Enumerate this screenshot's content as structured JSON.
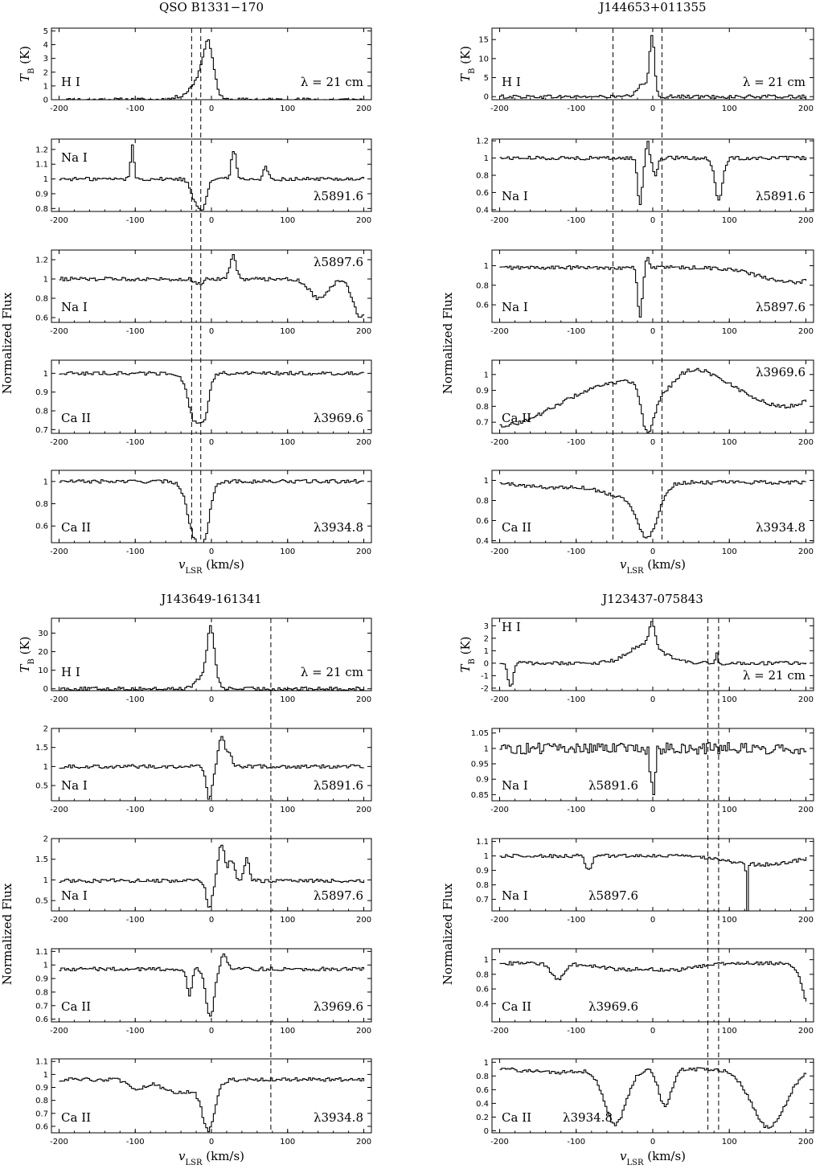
{
  "chart_data": [
    {
      "type": "line",
      "title": "QSO B1331−170",
      "xlabel": "v_LSR (km/s)",
      "ylabel": "Normalized Flux",
      "xlim": [
        -210,
        210
      ],
      "xticks": [
        "-200",
        "-100",
        "0",
        "100",
        "200"
      ],
      "vlines": [
        -26,
        -14
      ],
      "panels": [
        {
          "species": "H I",
          "line": "λ = 21 cm",
          "ylabel": "T_B (K)",
          "ylim": [
            0,
            5.2
          ],
          "yticks": [
            "0",
            "1",
            "2",
            "3",
            "4",
            "5"
          ],
          "baseline": 0,
          "features": [
            {
              "type": "emission",
              "center": -5,
              "width": 7,
              "depth": 3.8
            },
            {
              "type": "emission",
              "center": -18,
              "width": 9,
              "depth": 1.2
            },
            {
              "type": "emission",
              "center": -35,
              "width": 12,
              "depth": 0.3
            }
          ]
        },
        {
          "species": "Na I",
          "line": "λ5891.6",
          "ylim": [
            0.78,
            1.27
          ],
          "yticks": [
            "0.8",
            "0.9",
            "1",
            "1.1",
            "1.2"
          ],
          "baseline": 1.0,
          "features": [
            {
              "type": "emission",
              "center": -105,
              "width": 2,
              "depth": 0.24
            },
            {
              "type": "absorption",
              "center": -22,
              "width": 6,
              "depth": 0.14
            },
            {
              "type": "absorption",
              "center": -12,
              "width": 5,
              "depth": 0.16
            },
            {
              "type": "emission",
              "center": 28,
              "width": 3,
              "depth": 0.2
            },
            {
              "type": "emission",
              "center": 70,
              "width": 3,
              "depth": 0.08
            }
          ]
        },
        {
          "species": "Na I",
          "line": "λ5897.6",
          "ylim": [
            0.55,
            1.3
          ],
          "yticks": [
            "0.6",
            "0.8",
            "1",
            "1.2"
          ],
          "baseline": 1.0,
          "features": [
            {
              "type": "emission",
              "center": 27,
              "width": 4,
              "depth": 0.25
            },
            {
              "type": "absorption",
              "center": -18,
              "width": 5,
              "depth": 0.05
            },
            {
              "type": "absorption",
              "center": 140,
              "width": 12,
              "depth": 0.2
            },
            {
              "type": "absorption",
              "center": 195,
              "width": 10,
              "depth": 0.4
            }
          ]
        },
        {
          "species": "Ca II",
          "line": "λ3969.6",
          "ylim": [
            0.68,
            1.07
          ],
          "yticks": [
            "0.7",
            "0.8",
            "0.9",
            "1"
          ],
          "baseline": 1.0,
          "features": [
            {
              "type": "absorption",
              "center": -24,
              "width": 8,
              "depth": 0.24
            },
            {
              "type": "absorption",
              "center": -10,
              "width": 6,
              "depth": 0.2
            }
          ]
        },
        {
          "species": "Ca II",
          "line": "λ3934.8",
          "ylim": [
            0.45,
            1.1
          ],
          "yticks": [
            "0.6",
            "0.8",
            "1"
          ],
          "baseline": 1.0,
          "features": [
            {
              "type": "absorption",
              "center": -24,
              "width": 9,
              "depth": 0.45
            },
            {
              "type": "absorption",
              "center": -10,
              "width": 7,
              "depth": 0.4
            }
          ]
        }
      ]
    },
    {
      "type": "line",
      "title": "J144653+011355",
      "xlabel": "v_LSR (km/s)",
      "ylabel": "Normalized Flux",
      "xlim": [
        -210,
        210
      ],
      "xticks": [
        "-200",
        "-100",
        "0",
        "100",
        "200"
      ],
      "vlines": [
        -52,
        12
      ],
      "panels": [
        {
          "species": "H I",
          "line": "λ = 21 cm",
          "ylabel": "T_B (K)",
          "ylim": [
            -0.8,
            18
          ],
          "yticks": [
            "0",
            "5",
            "10",
            "15"
          ],
          "baseline": 0,
          "features": [
            {
              "type": "emission",
              "center": -2,
              "width": 3,
              "depth": 15
            },
            {
              "type": "emission",
              "center": -12,
              "width": 8,
              "depth": 3.5
            }
          ]
        },
        {
          "species": "Na I",
          "line": "λ5891.6",
          "ylim": [
            0.38,
            1.22
          ],
          "yticks": [
            "0.4",
            "0.6",
            "0.8",
            "1",
            "1.2"
          ],
          "baseline": 1.0,
          "features": [
            {
              "type": "absorption",
              "center": -18,
              "width": 3,
              "depth": 0.55
            },
            {
              "type": "emission",
              "center": -8,
              "width": 2,
              "depth": 0.2
            },
            {
              "type": "absorption",
              "center": 2,
              "width": 3,
              "depth": 0.2
            },
            {
              "type": "absorption",
              "center": 85,
              "width": 5,
              "depth": 0.5
            }
          ]
        },
        {
          "species": "Na I",
          "line": "λ5897.6",
          "ylim": [
            0.42,
            1.16
          ],
          "yticks": [
            "0.6",
            "0.8",
            "1"
          ],
          "baseline": 0.98,
          "features": [
            {
              "type": "absorption",
              "center": -18,
              "width": 3,
              "depth": 0.5
            },
            {
              "type": "emission",
              "center": -8,
              "width": 2,
              "depth": 0.12
            },
            {
              "type": "absorption",
              "center": 180,
              "width": 40,
              "depth": 0.15
            }
          ]
        },
        {
          "species": "Ca II",
          "line": "λ3969.6",
          "ylim": [
            0.63,
            1.09
          ],
          "yticks": [
            "0.7",
            "0.8",
            "0.9",
            "1"
          ],
          "baseline": 0.98,
          "features": [
            {
              "type": "absorption",
              "center": -200,
              "width": 70,
              "depth": 0.3
            },
            {
              "type": "absorption",
              "center": -8,
              "width": 8,
              "depth": 0.3
            },
            {
              "type": "absorption",
              "center": 10,
              "width": 15,
              "depth": 0.1
            },
            {
              "type": "emission",
              "center": 55,
              "width": 25,
              "depth": 0.06
            },
            {
              "type": "absorption",
              "center": 170,
              "width": 45,
              "depth": 0.18
            }
          ]
        },
        {
          "species": "Ca II",
          "line": "λ3934.8",
          "ylim": [
            0.38,
            1.1
          ],
          "yticks": [
            "0.4",
            "0.6",
            "0.8",
            "1"
          ],
          "baseline": 0.98,
          "features": [
            {
              "type": "absorption",
              "center": -8,
              "width": 14,
              "depth": 0.5
            },
            {
              "type": "absorption",
              "center": -45,
              "width": 25,
              "depth": 0.12
            },
            {
              "type": "absorption",
              "center": -130,
              "width": 40,
              "depth": 0.05
            }
          ]
        }
      ]
    },
    {
      "type": "line",
      "title": "J143649-161341",
      "xlabel": "v_LSR (km/s)",
      "ylabel": "Normalized Flux",
      "xlim": [
        -210,
        210
      ],
      "xticks": [
        "-200",
        "-100",
        "0",
        "100",
        "200"
      ],
      "vlines": [
        78
      ],
      "panels": [
        {
          "species": "H I",
          "line": "λ = 21 cm",
          "ylabel": "T_B (K)",
          "ylim": [
            -1,
            38
          ],
          "yticks": [
            "0",
            "10",
            "20",
            "30"
          ],
          "baseline": 0,
          "features": [
            {
              "type": "emission",
              "center": -2,
              "width": 5,
              "depth": 28
            },
            {
              "type": "emission",
              "center": -8,
              "width": 10,
              "depth": 6
            },
            {
              "type": "emission",
              "center": -20,
              "width": 6,
              "depth": 1.5
            }
          ]
        },
        {
          "species": "Na I",
          "line": "λ5891.6",
          "ylim": [
            0.1,
            2.0
          ],
          "yticks": [
            "0.5",
            "1",
            "1.5",
            "2"
          ],
          "baseline": 1.0,
          "features": [
            {
              "type": "absorption",
              "center": -4,
              "width": 4,
              "depth": 0.85
            },
            {
              "type": "emission",
              "center": 12,
              "width": 4,
              "depth": 0.8
            },
            {
              "type": "emission",
              "center": 22,
              "width": 4,
              "depth": 0.3
            }
          ]
        },
        {
          "species": "Na I",
          "line": "λ5897.6",
          "ylim": [
            0.25,
            2.0
          ],
          "yticks": [
            "0.5",
            "1",
            "1.5",
            "2"
          ],
          "baseline": 0.98,
          "features": [
            {
              "type": "absorption",
              "center": -4,
              "width": 4,
              "depth": 0.65
            },
            {
              "type": "emission",
              "center": 12,
              "width": 4,
              "depth": 0.9
            },
            {
              "type": "emission",
              "center": 25,
              "width": 4,
              "depth": 0.5
            },
            {
              "type": "emission",
              "center": 45,
              "width": 3,
              "depth": 0.55
            }
          ]
        },
        {
          "species": "Ca II",
          "line": "λ3969.6",
          "ylim": [
            0.58,
            1.12
          ],
          "yticks": [
            "0.6",
            "0.7",
            "0.8",
            "0.9",
            "1",
            "1.1"
          ],
          "baseline": 0.97,
          "features": [
            {
              "type": "absorption",
              "center": -3,
              "width": 5,
              "depth": 0.36
            },
            {
              "type": "absorption",
              "center": -30,
              "width": 3,
              "depth": 0.2
            },
            {
              "type": "emission",
              "center": 15,
              "width": 4,
              "depth": 0.1
            }
          ]
        },
        {
          "species": "Ca II",
          "line": "λ3934.8",
          "ylim": [
            0.55,
            1.12
          ],
          "yticks": [
            "0.6",
            "0.7",
            "0.8",
            "0.9",
            "1",
            "1.1"
          ],
          "baseline": 0.96,
          "features": [
            {
              "type": "absorption",
              "center": -5,
              "width": 8,
              "depth": 0.35
            },
            {
              "type": "absorption",
              "center": -40,
              "width": 25,
              "depth": 0.1
            },
            {
              "type": "absorption",
              "center": -100,
              "width": 10,
              "depth": 0.08
            }
          ]
        }
      ]
    },
    {
      "type": "line",
      "title": "J123437-075843",
      "xlabel": "v_LSR (km/s)",
      "ylabel": "Normalized Flux",
      "xlim": [
        -210,
        210
      ],
      "xticks": [
        "-200",
        "-100",
        "0",
        "100",
        "200"
      ],
      "vlines": [
        72,
        86
      ],
      "panels": [
        {
          "species": "H I",
          "line": "λ = 21 cm",
          "ylabel": "T_B (K)",
          "ylim": [
            -2.2,
            3.6
          ],
          "yticks": [
            "-2",
            "-1",
            "0",
            "1",
            "2",
            "3"
          ],
          "baseline": 0,
          "features": [
            {
              "type": "absorption",
              "center": -187,
              "width": 3,
              "depth": 2.0
            },
            {
              "type": "emission",
              "center": -2,
              "width": 4,
              "depth": 1.8
            },
            {
              "type": "emission",
              "center": -10,
              "width": 22,
              "depth": 1.5
            },
            {
              "type": "emission",
              "center": 82,
              "width": 1,
              "depth": 0.9
            }
          ]
        },
        {
          "species": "Na I",
          "line": "λ5891.6",
          "ylim": [
            0.83,
            1.065
          ],
          "yticks": [
            "0.85",
            "0.9",
            "0.95",
            "1",
            "1.05"
          ],
          "baseline": 1.0,
          "features": [
            {
              "type": "absorption",
              "center": 0,
              "width": 2,
              "depth": 0.15
            },
            {
              "type": "absorption",
              "center": -4,
              "width": 2,
              "depth": 0.06
            }
          ]
        },
        {
          "species": "Na I",
          "line": "λ5897.6",
          "ylim": [
            0.62,
            1.12
          ],
          "yticks": [
            "0.7",
            "0.8",
            "0.9",
            "1",
            "1.1"
          ],
          "baseline": 1.0,
          "features": [
            {
              "type": "absorption",
              "center": -85,
              "width": 4,
              "depth": 0.1
            },
            {
              "type": "absorption",
              "center": 122,
              "width": 1,
              "depth": 0.4
            },
            {
              "type": "absorption",
              "center": 140,
              "width": 40,
              "depth": 0.06
            }
          ]
        },
        {
          "species": "Ca II",
          "line": "λ3969.6",
          "ylim": [
            0.15,
            1.15
          ],
          "yticks": [
            "0.4",
            "0.6",
            "0.8",
            "1"
          ],
          "baseline": 0.95,
          "features": [
            {
              "type": "absorption",
              "center": -125,
              "width": 8,
              "depth": 0.22
            },
            {
              "type": "absorption",
              "center": -40,
              "width": 35,
              "depth": 0.08
            },
            {
              "type": "absorption",
              "center": 30,
              "width": 25,
              "depth": 0.08
            },
            {
              "type": "absorption",
              "center": 205,
              "width": 10,
              "depth": 0.6
            }
          ]
        },
        {
          "species": "Ca II",
          "line": "λ3934.8",
          "ylim": [
            -0.03,
            1.05
          ],
          "yticks": [
            "0",
            "0.2",
            "0.4",
            "0.6",
            "0.8",
            "1"
          ],
          "baseline": 0.9,
          "features": [
            {
              "type": "absorption",
              "center": -50,
              "width": 14,
              "depth": 0.8
            },
            {
              "type": "absorption",
              "center": 15,
              "width": 8,
              "depth": 0.55
            },
            {
              "type": "absorption",
              "center": 150,
              "width": 22,
              "depth": 0.85
            },
            {
              "type": "absorption",
              "center": -130,
              "width": 30,
              "depth": 0.05
            }
          ]
        }
      ]
    }
  ]
}
